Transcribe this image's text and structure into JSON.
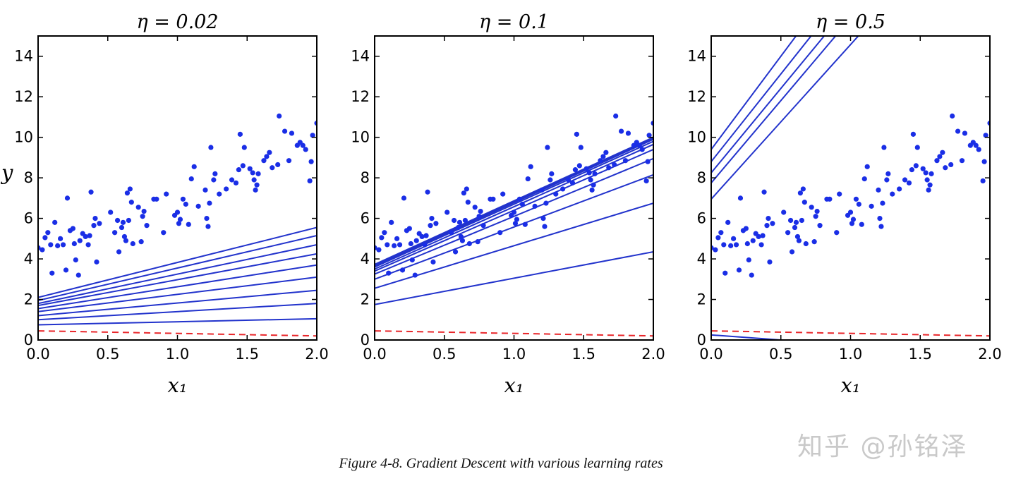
{
  "caption": "Figure 4-8. Gradient Descent with various learning rates",
  "watermark": "知乎 @孙铭泽",
  "colors": {
    "points": "#1a2ee6",
    "fit_lines": "#2233cc",
    "initial_line": "#e8262a",
    "axes": "#000000"
  },
  "chart_data": [
    {
      "type": "scatter",
      "title": "η = 0.02",
      "xlabel": "x₁",
      "ylabel": "y",
      "xlim": [
        0.0,
        2.0
      ],
      "ylim": [
        0,
        15
      ],
      "xticks": [
        "0.0",
        "0.5",
        "1.0",
        "1.5",
        "2.0"
      ],
      "yticks": [
        "0",
        "2",
        "4",
        "6",
        "8",
        "10",
        "12",
        "14"
      ],
      "grid": false,
      "initial_line": {
        "style": "dashed",
        "y_at_x0": 0.45,
        "y_at_x2": 0.2
      },
      "fitted_lines": [
        [
          0.75,
          1.05
        ],
        [
          1.0,
          1.8
        ],
        [
          1.2,
          2.45
        ],
        [
          1.4,
          3.1
        ],
        [
          1.55,
          3.7
        ],
        [
          1.7,
          4.25
        ],
        [
          1.8,
          4.7
        ],
        [
          1.95,
          5.15
        ],
        [
          2.1,
          5.55
        ]
      ]
    },
    {
      "type": "scatter",
      "title": "η = 0.1",
      "xlabel": "x₁",
      "ylabel": "",
      "xlim": [
        0.0,
        2.0
      ],
      "ylim": [
        0,
        15
      ],
      "xticks": [
        "0.0",
        "0.5",
        "1.0",
        "1.5",
        "2.0"
      ],
      "yticks": [
        "0",
        "2",
        "4",
        "6",
        "8",
        "10",
        "12",
        "14"
      ],
      "grid": false,
      "initial_line": {
        "style": "dashed",
        "y_at_x0": 0.45,
        "y_at_x2": 0.2
      },
      "fitted_lines": [
        [
          1.75,
          4.35
        ],
        [
          2.55,
          6.75
        ],
        [
          3.0,
          8.15
        ],
        [
          3.25,
          8.95
        ],
        [
          3.4,
          9.4
        ],
        [
          3.5,
          9.65
        ],
        [
          3.6,
          9.8
        ],
        [
          3.65,
          9.9
        ],
        [
          3.7,
          9.95
        ],
        [
          3.73,
          10.0
        ]
      ]
    },
    {
      "type": "scatter",
      "title": "η = 0.5",
      "xlabel": "x₁",
      "ylabel": "",
      "xlim": [
        0.0,
        2.0
      ],
      "ylim": [
        0,
        15
      ],
      "xticks": [
        "0.0",
        "0.5",
        "1.0",
        "1.5",
        "2.0"
      ],
      "yticks": [
        "0",
        "2",
        "4",
        "6",
        "8",
        "10",
        "12",
        "14"
      ],
      "grid": false,
      "initial_line": {
        "style": "dashed",
        "y_at_x0": 0.45,
        "y_at_x2": 0.2
      },
      "fitted_lines": [
        [
          0.25,
          -0.75
        ],
        [
          6.95,
          22.2
        ],
        [
          7.75,
          24.0
        ],
        [
          8.25,
          24.9
        ],
        [
          8.8,
          26.1
        ],
        [
          9.4,
          27.8
        ]
      ]
    }
  ],
  "scatter_points": [
    [
      0.0,
      4.55
    ],
    [
      0.03,
      4.45
    ],
    [
      0.05,
      5.05
    ],
    [
      0.07,
      5.3
    ],
    [
      0.09,
      4.7
    ],
    [
      0.1,
      3.3
    ],
    [
      0.12,
      5.8
    ],
    [
      0.14,
      4.65
    ],
    [
      0.16,
      5.0
    ],
    [
      0.18,
      4.7
    ],
    [
      0.2,
      3.45
    ],
    [
      0.21,
      7.0
    ],
    [
      0.23,
      5.4
    ],
    [
      0.25,
      5.5
    ],
    [
      0.26,
      4.75
    ],
    [
      0.27,
      3.95
    ],
    [
      0.29,
      3.2
    ],
    [
      0.3,
      4.9
    ],
    [
      0.32,
      5.25
    ],
    [
      0.34,
      5.1
    ],
    [
      0.36,
      4.7
    ],
    [
      0.37,
      5.15
    ],
    [
      0.38,
      7.3
    ],
    [
      0.4,
      5.65
    ],
    [
      0.41,
      6.0
    ],
    [
      0.42,
      3.85
    ],
    [
      0.44,
      5.75
    ],
    [
      0.52,
      6.3
    ],
    [
      0.55,
      5.3
    ],
    [
      0.57,
      5.9
    ],
    [
      0.58,
      4.35
    ],
    [
      0.6,
      5.55
    ],
    [
      0.61,
      5.8
    ],
    [
      0.62,
      5.1
    ],
    [
      0.63,
      4.9
    ],
    [
      0.64,
      7.25
    ],
    [
      0.65,
      5.9
    ],
    [
      0.66,
      7.45
    ],
    [
      0.67,
      6.8
    ],
    [
      0.68,
      4.75
    ],
    [
      0.72,
      6.55
    ],
    [
      0.74,
      4.85
    ],
    [
      0.75,
      6.1
    ],
    [
      0.76,
      6.35
    ],
    [
      0.78,
      5.65
    ],
    [
      0.83,
      6.95
    ],
    [
      0.85,
      6.95
    ],
    [
      0.9,
      5.3
    ],
    [
      0.92,
      7.2
    ],
    [
      0.98,
      6.15
    ],
    [
      1.0,
      6.3
    ],
    [
      1.01,
      5.75
    ],
    [
      1.02,
      5.95
    ],
    [
      1.04,
      6.95
    ],
    [
      1.06,
      6.7
    ],
    [
      1.08,
      5.7
    ],
    [
      1.1,
      7.95
    ],
    [
      1.12,
      8.55
    ],
    [
      1.15,
      6.6
    ],
    [
      1.2,
      7.4
    ],
    [
      1.21,
      6.0
    ],
    [
      1.22,
      5.6
    ],
    [
      1.23,
      6.75
    ],
    [
      1.24,
      9.5
    ],
    [
      1.26,
      7.9
    ],
    [
      1.27,
      8.2
    ],
    [
      1.3,
      7.2
    ],
    [
      1.35,
      7.45
    ],
    [
      1.39,
      7.9
    ],
    [
      1.42,
      7.75
    ],
    [
      1.44,
      8.4
    ],
    [
      1.45,
      10.15
    ],
    [
      1.47,
      8.6
    ],
    [
      1.48,
      9.5
    ],
    [
      1.52,
      8.45
    ],
    [
      1.54,
      8.25
    ],
    [
      1.55,
      7.9
    ],
    [
      1.56,
      7.4
    ],
    [
      1.57,
      7.65
    ],
    [
      1.58,
      8.2
    ],
    [
      1.62,
      8.85
    ],
    [
      1.64,
      9.05
    ],
    [
      1.66,
      9.25
    ],
    [
      1.68,
      8.5
    ],
    [
      1.72,
      8.65
    ],
    [
      1.73,
      11.05
    ],
    [
      1.77,
      10.3
    ],
    [
      1.8,
      8.85
    ],
    [
      1.82,
      10.2
    ],
    [
      1.86,
      9.6
    ],
    [
      1.88,
      9.75
    ],
    [
      1.9,
      9.6
    ],
    [
      1.92,
      9.4
    ],
    [
      1.95,
      7.85
    ],
    [
      1.96,
      8.8
    ],
    [
      1.97,
      10.1
    ],
    [
      2.0,
      10.7
    ]
  ]
}
